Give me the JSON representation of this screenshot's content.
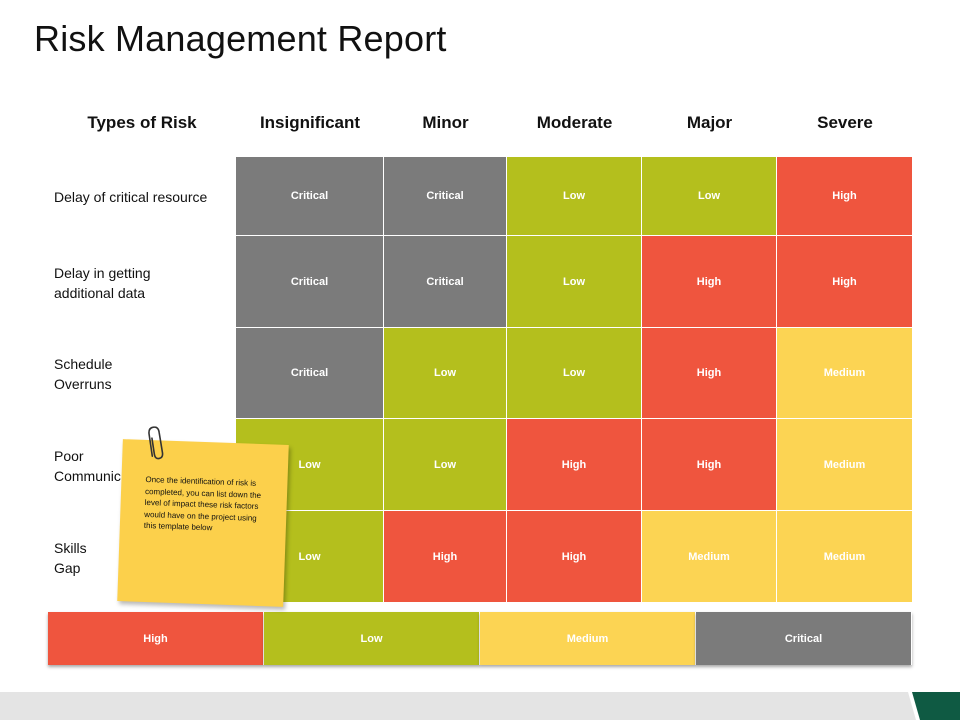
{
  "title": "Risk Management Report",
  "headers": {
    "types": "Types of Risk",
    "c1": "Insignificant",
    "c2": "Minor",
    "c3": "Moderate",
    "c4": "Major",
    "c5": "Severe"
  },
  "rows": [
    {
      "label": "Delay of critical resource",
      "cells": [
        "Critical",
        "Critical",
        "Low",
        "Low",
        "High"
      ]
    },
    {
      "label": "Delay in getting\nadditional data",
      "cells": [
        "Critical",
        "Critical",
        "Low",
        "High",
        "High"
      ]
    },
    {
      "label": "Schedule\nOverruns",
      "cells": [
        "Critical",
        "Low",
        "Low",
        "High",
        "Medium"
      ]
    },
    {
      "label": "Poor\nCommunication",
      "cells": [
        "Low",
        "Low",
        "High",
        "High",
        "Medium"
      ]
    },
    {
      "label": "Skills\nGap",
      "cells": [
        "Low",
        "High",
        "High",
        "Medium",
        "Medium"
      ]
    }
  ],
  "legend": [
    "High",
    "Low",
    "Medium",
    "Critical"
  ],
  "note": {
    "text": "Once the identification of risk is completed, you can list down the level of impact these risk factors would have on the project using this template below"
  },
  "colors": {
    "Critical": "#7b7b7b",
    "Low": "#b4bf1d",
    "High": "#ef553e",
    "Medium": "#fcd453",
    "accent": "#0f5a43"
  }
}
